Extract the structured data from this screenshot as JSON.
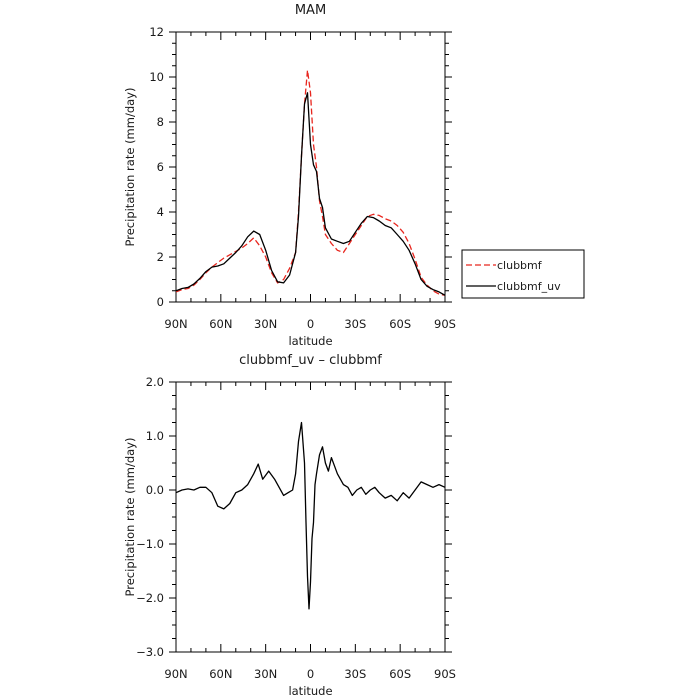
{
  "chart_data": [
    {
      "type": "line",
      "title": "MAM",
      "xlabel": "latitude",
      "ylabel": "Precipitation rate (mm/day)",
      "xlim": [
        90,
        -90
      ],
      "ylim": [
        0,
        12
      ],
      "x_ticks": [
        {
          "value": 90,
          "label": "90N"
        },
        {
          "value": 60,
          "label": "60N"
        },
        {
          "value": 30,
          "label": "30N"
        },
        {
          "value": 0,
          "label": "0"
        },
        {
          "value": -30,
          "label": "30S"
        },
        {
          "value": -60,
          "label": "60S"
        },
        {
          "value": -90,
          "label": "90S"
        }
      ],
      "y_ticks": [
        {
          "value": 0,
          "label": "0"
        },
        {
          "value": 2,
          "label": "2"
        },
        {
          "value": 4,
          "label": "4"
        },
        {
          "value": 6,
          "label": "6"
        },
        {
          "value": 8,
          "label": "8"
        },
        {
          "value": 10,
          "label": "10"
        },
        {
          "value": 12,
          "label": "12"
        }
      ],
      "legend": {
        "placement": "right"
      },
      "grid": false,
      "series": [
        {
          "name": "clubbmf",
          "color": "#e8261e",
          "dash": "dashed",
          "points": [
            [
              90,
              0.45
            ],
            [
              86,
              0.55
            ],
            [
              82,
              0.6
            ],
            [
              78,
              0.75
            ],
            [
              74,
              1.0
            ],
            [
              70,
              1.3
            ],
            [
              66,
              1.55
            ],
            [
              62,
              1.75
            ],
            [
              58,
              1.95
            ],
            [
              54,
              2.1
            ],
            [
              50,
              2.25
            ],
            [
              46,
              2.4
            ],
            [
              42,
              2.6
            ],
            [
              38,
              2.85
            ],
            [
              34,
              2.5
            ],
            [
              30,
              2.0
            ],
            [
              26,
              1.3
            ],
            [
              22,
              0.85
            ],
            [
              18,
              1.0
            ],
            [
              14,
              1.5
            ],
            [
              10,
              2.2
            ],
            [
              8,
              4.0
            ],
            [
              6,
              6.5
            ],
            [
              4,
              8.8
            ],
            [
              2,
              10.3
            ],
            [
              0,
              9.3
            ],
            [
              -2,
              7.0
            ],
            [
              -4,
              6.0
            ],
            [
              -6,
              4.5
            ],
            [
              -8,
              3.8
            ],
            [
              -10,
              3.0
            ],
            [
              -14,
              2.6
            ],
            [
              -18,
              2.3
            ],
            [
              -22,
              2.2
            ],
            [
              -26,
              2.6
            ],
            [
              -30,
              3.0
            ],
            [
              -34,
              3.4
            ],
            [
              -38,
              3.8
            ],
            [
              -42,
              3.9
            ],
            [
              -46,
              3.85
            ],
            [
              -50,
              3.7
            ],
            [
              -54,
              3.6
            ],
            [
              -58,
              3.4
            ],
            [
              -62,
              3.1
            ],
            [
              -66,
              2.6
            ],
            [
              -70,
              1.9
            ],
            [
              -74,
              1.1
            ],
            [
              -78,
              0.75
            ],
            [
              -82,
              0.5
            ],
            [
              -86,
              0.35
            ],
            [
              -90,
              0.3
            ]
          ]
        },
        {
          "name": "clubbmf_uv",
          "color": "#000000",
          "dash": "solid",
          "points": [
            [
              90,
              0.5
            ],
            [
              86,
              0.6
            ],
            [
              82,
              0.65
            ],
            [
              78,
              0.8
            ],
            [
              74,
              1.05
            ],
            [
              70,
              1.35
            ],
            [
              66,
              1.55
            ],
            [
              62,
              1.6
            ],
            [
              58,
              1.7
            ],
            [
              54,
              1.95
            ],
            [
              50,
              2.2
            ],
            [
              46,
              2.5
            ],
            [
              42,
              2.9
            ],
            [
              38,
              3.15
            ],
            [
              34,
              3.0
            ],
            [
              30,
              2.3
            ],
            [
              26,
              1.4
            ],
            [
              22,
              0.9
            ],
            [
              18,
              0.85
            ],
            [
              14,
              1.2
            ],
            [
              10,
              2.2
            ],
            [
              8,
              3.8
            ],
            [
              6,
              6.5
            ],
            [
              4,
              8.8
            ],
            [
              2,
              9.3
            ],
            [
              0,
              7.0
            ],
            [
              -2,
              6.1
            ],
            [
              -4,
              5.8
            ],
            [
              -6,
              4.6
            ],
            [
              -8,
              4.2
            ],
            [
              -10,
              3.3
            ],
            [
              -14,
              2.8
            ],
            [
              -18,
              2.7
            ],
            [
              -22,
              2.6
            ],
            [
              -26,
              2.7
            ],
            [
              -30,
              3.1
            ],
            [
              -34,
              3.5
            ],
            [
              -38,
              3.8
            ],
            [
              -42,
              3.75
            ],
            [
              -46,
              3.6
            ],
            [
              -50,
              3.4
            ],
            [
              -54,
              3.3
            ],
            [
              -58,
              3.0
            ],
            [
              -62,
              2.7
            ],
            [
              -66,
              2.3
            ],
            [
              -70,
              1.7
            ],
            [
              -74,
              1.0
            ],
            [
              -78,
              0.7
            ],
            [
              -82,
              0.55
            ],
            [
              -86,
              0.45
            ],
            [
              -90,
              0.3
            ]
          ]
        }
      ]
    },
    {
      "type": "line",
      "title": "clubbmf_uv – clubbmf",
      "xlabel": "latitude",
      "ylabel": "Precipitation rate (mm/day)",
      "xlim": [
        90,
        -90
      ],
      "ylim": [
        -3,
        2
      ],
      "x_ticks": [
        {
          "value": 90,
          "label": "90N"
        },
        {
          "value": 60,
          "label": "60N"
        },
        {
          "value": 30,
          "label": "30N"
        },
        {
          "value": 0,
          "label": "0"
        },
        {
          "value": -30,
          "label": "30S"
        },
        {
          "value": -60,
          "label": "60S"
        },
        {
          "value": -90,
          "label": "90S"
        }
      ],
      "y_ticks": [
        {
          "value": -3,
          "label": "−3.0"
        },
        {
          "value": -2,
          "label": "−2.0"
        },
        {
          "value": -1,
          "label": "−1.0"
        },
        {
          "value": 0,
          "label": "0.0"
        },
        {
          "value": 1,
          "label": "1.0"
        },
        {
          "value": 2,
          "label": "2.0"
        }
      ],
      "grid": false,
      "series": [
        {
          "color": "#000000",
          "dash": "solid",
          "points": [
            [
              90,
              -0.05
            ],
            [
              86,
              0.0
            ],
            [
              82,
              0.02
            ],
            [
              78,
              0.0
            ],
            [
              74,
              0.05
            ],
            [
              70,
              0.05
            ],
            [
              66,
              -0.05
            ],
            [
              62,
              -0.3
            ],
            [
              58,
              -0.35
            ],
            [
              54,
              -0.25
            ],
            [
              50,
              -0.05
            ],
            [
              46,
              0.0
            ],
            [
              42,
              0.1
            ],
            [
              38,
              0.3
            ],
            [
              35,
              0.48
            ],
            [
              32,
              0.2
            ],
            [
              28,
              0.35
            ],
            [
              24,
              0.2
            ],
            [
              21,
              0.05
            ],
            [
              18,
              -0.1
            ],
            [
              15,
              -0.05
            ],
            [
              12,
              0.0
            ],
            [
              10,
              0.3
            ],
            [
              8,
              0.9
            ],
            [
              6,
              1.25
            ],
            [
              4,
              0.5
            ],
            [
              3,
              -0.6
            ],
            [
              2,
              -1.6
            ],
            [
              1,
              -2.2
            ],
            [
              0,
              -1.7
            ],
            [
              -1,
              -0.9
            ],
            [
              -2,
              -0.6
            ],
            [
              -3,
              0.1
            ],
            [
              -4,
              0.3
            ],
            [
              -6,
              0.65
            ],
            [
              -8,
              0.8
            ],
            [
              -10,
              0.5
            ],
            [
              -12,
              0.35
            ],
            [
              -14,
              0.6
            ],
            [
              -16,
              0.45
            ],
            [
              -18,
              0.3
            ],
            [
              -20,
              0.2
            ],
            [
              -22,
              0.1
            ],
            [
              -25,
              0.05
            ],
            [
              -28,
              -0.1
            ],
            [
              -31,
              0.0
            ],
            [
              -34,
              0.05
            ],
            [
              -37,
              -0.08
            ],
            [
              -40,
              0.0
            ],
            [
              -43,
              0.05
            ],
            [
              -46,
              -0.05
            ],
            [
              -50,
              -0.15
            ],
            [
              -54,
              -0.1
            ],
            [
              -58,
              -0.2
            ],
            [
              -62,
              -0.05
            ],
            [
              -66,
              -0.15
            ],
            [
              -70,
              0.0
            ],
            [
              -74,
              0.15
            ],
            [
              -78,
              0.1
            ],
            [
              -82,
              0.05
            ],
            [
              -86,
              0.1
            ],
            [
              -90,
              0.05
            ]
          ]
        }
      ]
    }
  ]
}
